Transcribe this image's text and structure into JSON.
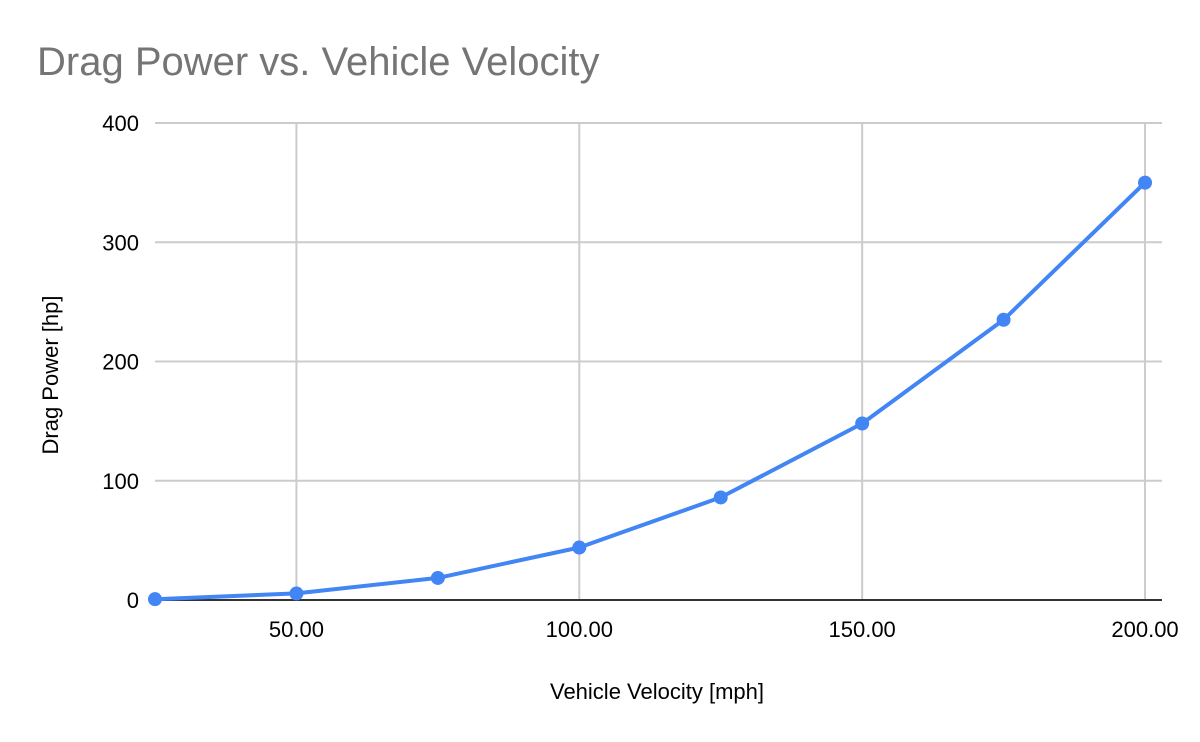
{
  "chart_data": {
    "type": "line",
    "title": "Drag Power vs. Vehicle Velocity",
    "xlabel": "Vehicle Velocity [mph]",
    "ylabel": "Drag Power [hp]",
    "xlim": [
      25,
      203
    ],
    "ylim": [
      0,
      400
    ],
    "grid": true,
    "legend": "none",
    "x_ticks": [
      {
        "value": 50,
        "label": "50.00"
      },
      {
        "value": 100,
        "label": "100.00"
      },
      {
        "value": 150,
        "label": "150.00"
      },
      {
        "value": 200,
        "label": "200.00"
      }
    ],
    "y_ticks": [
      {
        "value": 0,
        "label": "0"
      },
      {
        "value": 100,
        "label": "100"
      },
      {
        "value": 200,
        "label": "200"
      },
      {
        "value": 300,
        "label": "300"
      },
      {
        "value": 400,
        "label": "400"
      }
    ],
    "series": [
      {
        "name": "Drag Power [hp]",
        "color": "#4285f4",
        "x": [
          25,
          50,
          75,
          100,
          125,
          150,
          175,
          200
        ],
        "y": [
          0.7,
          5.5,
          18.5,
          44,
          86,
          148,
          235,
          350
        ]
      }
    ]
  }
}
